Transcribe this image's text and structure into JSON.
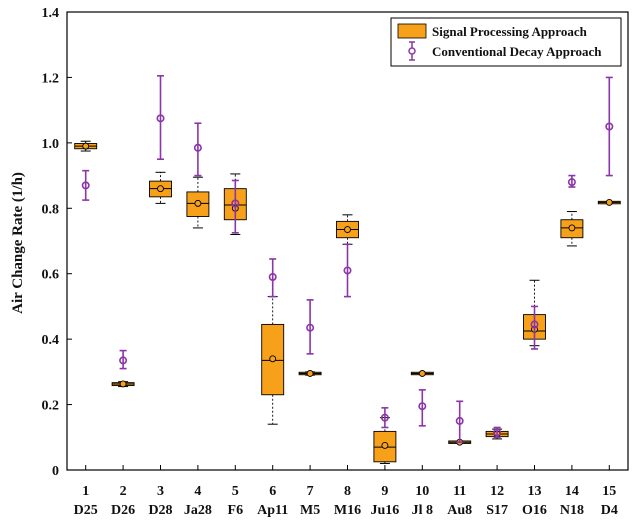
{
  "chart_data": {
    "type": "box",
    "ylabel": "Air Change Rate (1/h)",
    "ylim": [
      0,
      1.4
    ],
    "yticks": [
      "0",
      "0.2",
      "0.4",
      "0.6",
      "0.8",
      "1.0",
      "1.2",
      "1.4"
    ],
    "categories_top": [
      "1",
      "2",
      "3",
      "4",
      "5",
      "6",
      "7",
      "8",
      "9",
      "10",
      "11",
      "12",
      "13",
      "14",
      "15"
    ],
    "categories_bottom": [
      "D25",
      "D26",
      "D28",
      "Ja28",
      "F6",
      "Ap11",
      "M5",
      "M16",
      "Ju16",
      "Jl 8",
      "Au8",
      "S17",
      "O16",
      "N18",
      "D4"
    ],
    "legend": [
      "Signal Processing Approach",
      "Conventional Decay Approach"
    ],
    "colors": {
      "box_fill": "#f7a11a",
      "box_edge": "#000000",
      "decay": "#8b35a8",
      "axis": "#000000"
    },
    "series": [
      {
        "name": "Signal Processing Approach",
        "kind": "boxplot",
        "boxes": [
          {
            "whisker_low": 0.975,
            "q1": 0.982,
            "median": 0.99,
            "q3": 0.998,
            "whisker_high": 1.005,
            "mean": 0.99
          },
          {
            "whisker_low": 0.255,
            "q1": 0.258,
            "median": 0.263,
            "q3": 0.267,
            "whisker_high": 0.27,
            "mean": 0.263
          },
          {
            "whisker_low": 0.815,
            "q1": 0.835,
            "median": 0.86,
            "q3": 0.883,
            "whisker_high": 0.91,
            "mean": 0.86
          },
          {
            "whisker_low": 0.74,
            "q1": 0.775,
            "median": 0.815,
            "q3": 0.85,
            "whisker_high": 0.895,
            "mean": 0.815
          },
          {
            "whisker_low": 0.72,
            "q1": 0.765,
            "median": 0.81,
            "q3": 0.86,
            "whisker_high": 0.905,
            "mean": 0.8
          },
          {
            "whisker_low": 0.14,
            "q1": 0.23,
            "median": 0.335,
            "q3": 0.445,
            "whisker_high": 0.53,
            "mean": 0.34
          },
          {
            "whisker_low": 0.29,
            "q1": 0.292,
            "median": 0.295,
            "q3": 0.298,
            "whisker_high": 0.3,
            "mean": 0.295
          },
          {
            "whisker_low": 0.69,
            "q1": 0.71,
            "median": 0.735,
            "q3": 0.76,
            "whisker_high": 0.78,
            "mean": 0.735
          },
          {
            "whisker_low": 0.02,
            "q1": 0.025,
            "median": 0.07,
            "q3": 0.118,
            "whisker_high": 0.16,
            "mean": 0.075
          },
          {
            "whisker_low": 0.293,
            "q1": 0.293,
            "median": 0.295,
            "q3": 0.297,
            "whisker_high": 0.297,
            "mean": 0.295
          },
          {
            "whisker_low": 0.083,
            "q1": 0.083,
            "median": 0.085,
            "q3": 0.087,
            "whisker_high": 0.087,
            "mean": 0.085
          },
          {
            "whisker_low": 0.095,
            "q1": 0.102,
            "median": 0.11,
            "q3": 0.118,
            "whisker_high": 0.125,
            "mean": 0.11
          },
          {
            "whisker_low": 0.38,
            "q1": 0.4,
            "median": 0.425,
            "q3": 0.475,
            "whisker_high": 0.58,
            "mean": 0.43
          },
          {
            "whisker_low": 0.685,
            "q1": 0.71,
            "median": 0.74,
            "q3": 0.765,
            "whisker_high": 0.79,
            "mean": 0.74
          },
          {
            "whisker_low": 0.815,
            "q1": 0.815,
            "median": 0.818,
            "q3": 0.82,
            "whisker_high": 0.82,
            "mean": 0.818
          }
        ]
      },
      {
        "name": "Conventional Decay Approach",
        "kind": "errorbar",
        "points": [
          {
            "mean": 0.87,
            "low": 0.825,
            "high": 0.915
          },
          {
            "mean": 0.335,
            "low": 0.31,
            "high": 0.365
          },
          {
            "mean": 1.075,
            "low": 0.95,
            "high": 1.205
          },
          {
            "mean": 0.985,
            "low": 0.9,
            "high": 1.06
          },
          {
            "mean": 0.815,
            "low": 0.725,
            "high": 0.885
          },
          {
            "mean": 0.59,
            "low": 0.53,
            "high": 0.645
          },
          {
            "mean": 0.435,
            "low": 0.355,
            "high": 0.52
          },
          {
            "mean": 0.61,
            "low": 0.53,
            "high": 0.69
          },
          {
            "mean": 0.16,
            "low": 0.13,
            "high": 0.19
          },
          {
            "mean": 0.195,
            "low": 0.135,
            "high": 0.245
          },
          {
            "mean": 0.15,
            "low": 0.085,
            "high": 0.21
          },
          {
            "mean": 0.115,
            "low": 0.1,
            "high": 0.13
          },
          {
            "mean": 0.445,
            "low": 0.37,
            "high": 0.5
          },
          {
            "mean": 0.88,
            "low": 0.865,
            "high": 0.9
          },
          {
            "mean": 1.05,
            "low": 0.9,
            "high": 1.2
          }
        ]
      }
    ]
  }
}
